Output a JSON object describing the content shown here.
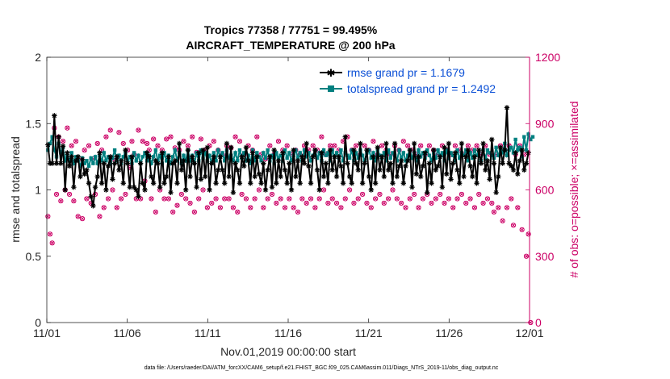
{
  "chart_data": {
    "type": "line",
    "title": "Tropics 77358 / 77751 = 99.495%",
    "subtitle": "AIRCRAFT_TEMPERATURE @ 200 hPa",
    "xlabel": "Nov.01,2019 00:00:00 start",
    "ylabel_left": "rmse and totalspread",
    "ylabel_right": "# of obs: o=possible; ×=assimilated",
    "xlim": [
      0,
      30
    ],
    "ylim_left": [
      0,
      2
    ],
    "ylim_right": [
      0,
      1200
    ],
    "x_ticks": [
      0,
      5,
      10,
      15,
      20,
      25,
      30
    ],
    "x_tick_labels": [
      "11/01",
      "11/06",
      "11/11",
      "11/16",
      "11/21",
      "11/26",
      "12/01"
    ],
    "y_ticks_left": [
      0,
      0.5,
      1,
      1.5,
      2
    ],
    "y_tick_labels_left": [
      "0",
      "0.5",
      "1",
      "1.5",
      "2"
    ],
    "y_ticks_right": [
      0,
      300,
      600,
      900,
      1200
    ],
    "y_tick_labels_right": [
      "0",
      "300",
      "600",
      "900",
      "1200"
    ],
    "legend_position": "top-right",
    "series": [
      {
        "name": "rmse grand pr = 1.1679",
        "color": "#000000",
        "axis": "left",
        "values": [
          1.34,
          1.2,
          1.2,
          1.56,
          1.2,
          1.4,
          1.2,
          1.33,
          1.0,
          1.28,
          1.18,
          1.25,
          1.02,
          1.22,
          1.25,
          1.1,
          1.23,
          1.12,
          1.15,
          1.05,
          0.95,
          0.88,
          1.02,
          1.1,
          1.28,
          1.05,
          1.2,
          1.0,
          1.18,
          1.25,
          1.08,
          1.2,
          1.25,
          1.15,
          1.22,
          1.05,
          1.3,
          1.2,
          1.02,
          1.25,
          1.02,
          1.0,
          0.95,
          1.2,
          1.05,
          1.0,
          1.28,
          1.25,
          1.1,
          1.05,
          1.22,
          1.2,
          1.02,
          1.28,
          1.05,
          1.1,
          1.25,
          0.98,
          1.2,
          1.22,
          1.05,
          1.35,
          1.15,
          1.22,
          1.0,
          1.3,
          1.1,
          1.25,
          1.2,
          1.02,
          1.28,
          1.08,
          1.3,
          1.1,
          1.32,
          1.0,
          1.2,
          1.25,
          1.05,
          1.15,
          1.25,
          1.15,
          1.05,
          1.35,
          1.1,
          1.32,
          0.98,
          1.2,
          1.15,
          1.05,
          1.25,
          1.18,
          1.32,
          1.22,
          1.05,
          1.28,
          1.1,
          1.25,
          1.12,
          1.05,
          1.2,
          1.0,
          1.15,
          1.25,
          1.02,
          1.3,
          1.05,
          1.22,
          1.1,
          1.28,
          1.15,
          1.05,
          1.2,
          1.0,
          1.3,
          1.1,
          1.22,
          1.05,
          1.25,
          1.2,
          1.35,
          1.18,
          1.05,
          1.25,
          1.3,
          1.15,
          1.0,
          1.28,
          1.1,
          1.2,
          1.05,
          1.3,
          1.15,
          1.25,
          1.1,
          1.25,
          1.18,
          1.05,
          1.4,
          1.2,
          1.1,
          1.05,
          1.3,
          1.2,
          1.15,
          1.35,
          1.05,
          1.2,
          1.3,
          1.1,
          1.0,
          1.25,
          1.05,
          1.32,
          1.15,
          1.25,
          1.1,
          1.35,
          1.15,
          1.2,
          1.05,
          1.35,
          1.1,
          1.18,
          1.22,
          1.05,
          1.18,
          1.22,
          1.3,
          1.02,
          1.35,
          1.12,
          1.25,
          1.1,
          1.18,
          1.28,
          0.98,
          1.2,
          1.05,
          1.3,
          1.15,
          1.18,
          1.25,
          1.02,
          1.32,
          1.12,
          1.35,
          1.08,
          1.2,
          1.28,
          1.15,
          1.05,
          1.35,
          1.1,
          1.25,
          1.3,
          1.18,
          1.1,
          1.25,
          1.05,
          1.3,
          1.2,
          1.35,
          1.15,
          1.22,
          1.08,
          1.38,
          1.2,
          0.98,
          1.1,
          1.32,
          1.2,
          1.3,
          1.62,
          1.2,
          1.18,
          1.15,
          1.28,
          1.12,
          1.22,
          1.3,
          1.15,
          1.2,
          1.28
        ]
      },
      {
        "name": "totalspread grand pr = 1.2492",
        "color": "#008080",
        "axis": "left",
        "values": [
          1.3,
          1.35,
          1.4,
          1.3,
          1.25,
          1.35,
          1.28,
          1.32,
          1.22,
          1.26,
          1.22,
          1.28,
          1.2,
          1.25,
          1.22,
          1.18,
          1.24,
          1.2,
          1.22,
          1.18,
          1.24,
          1.2,
          1.25,
          1.2,
          1.26,
          1.22,
          1.28,
          1.22,
          1.25,
          1.2,
          1.24,
          1.3,
          1.22,
          1.26,
          1.2,
          1.25,
          1.28,
          1.22,
          1.25,
          1.2,
          1.28,
          1.22,
          1.26,
          1.2,
          1.25,
          1.28,
          1.22,
          1.26,
          1.2,
          1.25,
          1.3,
          1.22,
          1.26,
          1.2,
          1.28,
          1.22,
          1.26,
          1.2,
          1.25,
          1.3,
          1.22,
          1.28,
          1.2,
          1.26,
          1.22,
          1.3,
          1.22,
          1.26,
          1.2,
          1.28,
          1.22,
          1.3,
          1.24,
          1.28,
          1.22,
          1.26,
          1.2,
          1.28,
          1.22,
          1.3,
          1.25,
          1.28,
          1.22,
          1.3,
          1.24,
          1.26,
          1.22,
          1.28,
          1.22,
          1.3,
          1.24,
          1.28,
          1.22,
          1.26,
          1.2,
          1.3,
          1.22,
          1.28,
          1.25,
          1.22,
          1.28,
          1.24,
          1.3,
          1.22,
          1.26,
          1.2,
          1.28,
          1.24,
          1.26,
          1.22,
          1.3,
          1.24,
          1.28,
          1.22,
          1.26,
          1.3,
          1.24,
          1.28,
          1.22,
          1.3,
          1.25,
          1.28,
          1.22,
          1.26,
          1.3,
          1.24,
          1.28,
          1.22,
          1.3,
          1.26,
          1.28,
          1.22,
          1.3,
          1.25,
          1.28,
          1.24,
          1.3,
          1.22,
          1.28,
          1.26,
          1.24,
          1.3,
          1.22,
          1.28,
          1.24,
          1.3,
          1.26,
          1.22,
          1.28,
          1.3,
          1.24,
          1.28,
          1.22,
          1.3,
          1.26,
          1.24,
          1.28,
          1.22,
          1.3,
          1.24,
          1.28,
          1.26,
          1.22,
          1.3,
          1.24,
          1.28,
          1.22,
          1.26,
          1.3,
          1.24,
          1.28,
          1.22,
          1.3,
          1.25,
          1.28,
          1.24,
          1.3,
          1.26,
          1.22,
          1.28,
          1.24,
          1.3,
          1.26,
          1.28,
          1.22,
          1.3,
          1.24,
          1.28,
          1.26,
          1.22,
          1.3,
          1.24,
          1.28,
          1.26,
          1.3,
          1.22,
          1.28,
          1.24,
          1.3,
          1.26,
          1.28,
          1.22,
          1.3,
          1.24,
          1.3,
          1.28,
          1.26,
          1.24,
          1.32,
          1.26,
          1.3,
          1.28,
          1.35,
          1.26,
          1.3,
          1.32,
          1.28,
          1.38,
          1.3,
          1.32,
          1.25,
          1.4,
          1.3,
          1.42,
          1.38,
          1.4
        ]
      },
      {
        "name": "possible",
        "color": "#cc0066",
        "axis": "right",
        "values": [
          480,
          400,
          360,
          880,
          580,
          840,
          550,
          820,
          600,
          880,
          580,
          800,
          550,
          820,
          480,
          740,
          470,
          780,
          560,
          800,
          540,
          740,
          580,
          810,
          480,
          780,
          520,
          840,
          560,
          870,
          600,
          740,
          520,
          860,
          560,
          810,
          580,
          780,
          700,
          820,
          760,
          560,
          870,
          560,
          820,
          640,
          810,
          780,
          560,
          830,
          500,
          800,
          600,
          780,
          560,
          830,
          560,
          840,
          500,
          790,
          530,
          780,
          580,
          820,
          560,
          800,
          540,
          840,
          500,
          770,
          560,
          830,
          600,
          780,
          520,
          800,
          540,
          820,
          560,
          780,
          520,
          760,
          560,
          800,
          560,
          790,
          520,
          840,
          500,
          820,
          580,
          760,
          560,
          800,
          520,
          780,
          560,
          840,
          600,
          760,
          520,
          740,
          560,
          800,
          580,
          760,
          540,
          820,
          560,
          780,
          520,
          800,
          560,
          760,
          520,
          780,
          500,
          760,
          560,
          800,
          540,
          780,
          560,
          800,
          520,
          780,
          560,
          840,
          600,
          760,
          540,
          800,
          560,
          800,
          540,
          780,
          520,
          820,
          560,
          840,
          600,
          780,
          540,
          800,
          560,
          760,
          580,
          800,
          540,
          780,
          520,
          820,
          560,
          760,
          580,
          800,
          540,
          780,
          560,
          760,
          600,
          800,
          560,
          780,
          540,
          820,
          520,
          800,
          560,
          780,
          580,
          760,
          520,
          800,
          560,
          760,
          580,
          800,
          540,
          780,
          560,
          760,
          580,
          800,
          540,
          780,
          560,
          760,
          520,
          800,
          560,
          780,
          580,
          760,
          540,
          800,
          560,
          780,
          520,
          800,
          580,
          760,
          540,
          800,
          560,
          760,
          540,
          500,
          760,
          520,
          800,
          460,
          780,
          520,
          800,
          560,
          440,
          760,
          520,
          800,
          420,
          760,
          300,
          400,
          0
        ]
      },
      {
        "name": "assimilated",
        "color": "#cc0066",
        "axis": "right",
        "values": [
          480,
          400,
          360,
          880,
          580,
          840,
          550,
          820,
          600,
          880,
          580,
          800,
          550,
          820,
          480,
          740,
          470,
          780,
          560,
          800,
          540,
          740,
          580,
          810,
          480,
          780,
          520,
          840,
          560,
          870,
          600,
          740,
          520,
          860,
          560,
          810,
          580,
          780,
          700,
          820,
          760,
          560,
          870,
          560,
          820,
          640,
          810,
          780,
          560,
          830,
          500,
          800,
          600,
          780,
          560,
          830,
          560,
          840,
          500,
          790,
          530,
          780,
          580,
          820,
          560,
          800,
          540,
          840,
          500,
          770,
          560,
          830,
          600,
          780,
          520,
          800,
          540,
          820,
          560,
          780,
          520,
          760,
          560,
          800,
          560,
          790,
          520,
          840,
          500,
          820,
          580,
          760,
          560,
          800,
          520,
          780,
          560,
          840,
          600,
          760,
          520,
          740,
          560,
          800,
          580,
          760,
          540,
          820,
          560,
          780,
          520,
          800,
          560,
          760,
          520,
          780,
          500,
          760,
          560,
          800,
          540,
          780,
          560,
          800,
          520,
          780,
          560,
          840,
          600,
          760,
          540,
          800,
          560,
          800,
          540,
          780,
          520,
          820,
          560,
          840,
          600,
          780,
          540,
          800,
          560,
          760,
          580,
          800,
          540,
          780,
          520,
          820,
          560,
          760,
          580,
          800,
          540,
          780,
          560,
          760,
          600,
          800,
          560,
          780,
          540,
          820,
          520,
          800,
          560,
          780,
          580,
          760,
          520,
          800,
          560,
          760,
          580,
          800,
          540,
          780,
          560,
          760,
          580,
          800,
          540,
          780,
          560,
          760,
          520,
          800,
          560,
          780,
          580,
          760,
          540,
          800,
          560,
          780,
          520,
          800,
          580,
          760,
          540,
          800,
          560,
          760,
          540,
          500,
          760,
          520,
          800,
          460,
          780,
          520,
          800,
          560,
          440,
          760,
          520,
          800,
          420,
          760,
          300,
          400,
          0
        ]
      }
    ]
  },
  "footer": "data file: /Users/raeder/DAI/ATM_forcXX/CAM6_setup/f.e21.FHIST_BGC.f09_025.CAM6assim.011/Diags_NTrS_2019-11/obs_diag_output.nc",
  "colors": {
    "rmse": "#000000",
    "spread": "#008080",
    "obs": "#cc0066",
    "legend_text": "#0a4fd6"
  }
}
